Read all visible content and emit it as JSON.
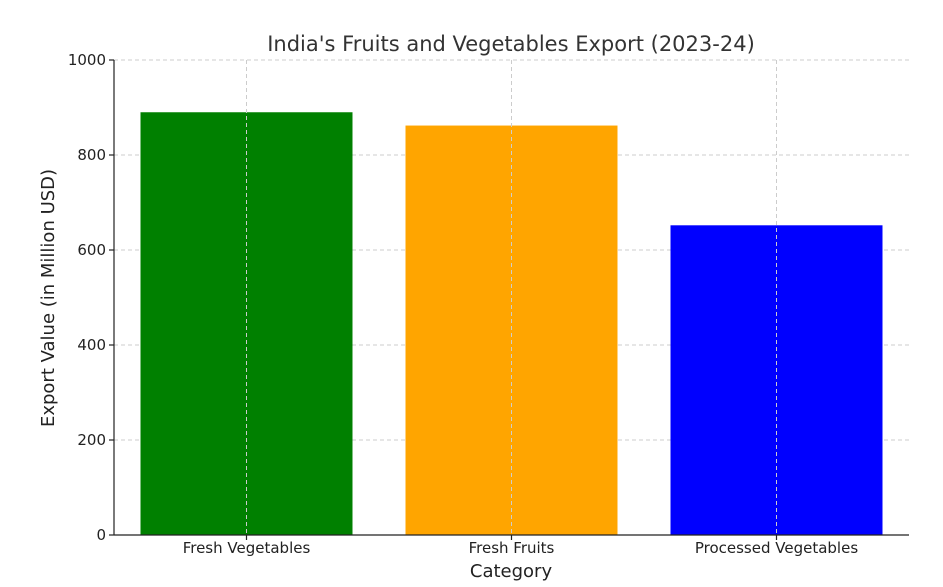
{
  "chart_data": {
    "type": "bar",
    "title": "India's Fruits and Vegetables Export (2023-24)",
    "xlabel": "Category",
    "ylabel": "Export Value (in Million USD)",
    "categories": [
      "Fresh Vegetables",
      "Fresh Fruits",
      "Processed Vegetables"
    ],
    "values": [
      890,
      862,
      652
    ],
    "colors": [
      "#008000",
      "#ffa500",
      "#0000ff"
    ],
    "ylim": [
      0,
      1000
    ],
    "yticks": [
      0,
      200,
      400,
      600,
      800,
      1000
    ],
    "grid": true,
    "legend": "none"
  }
}
